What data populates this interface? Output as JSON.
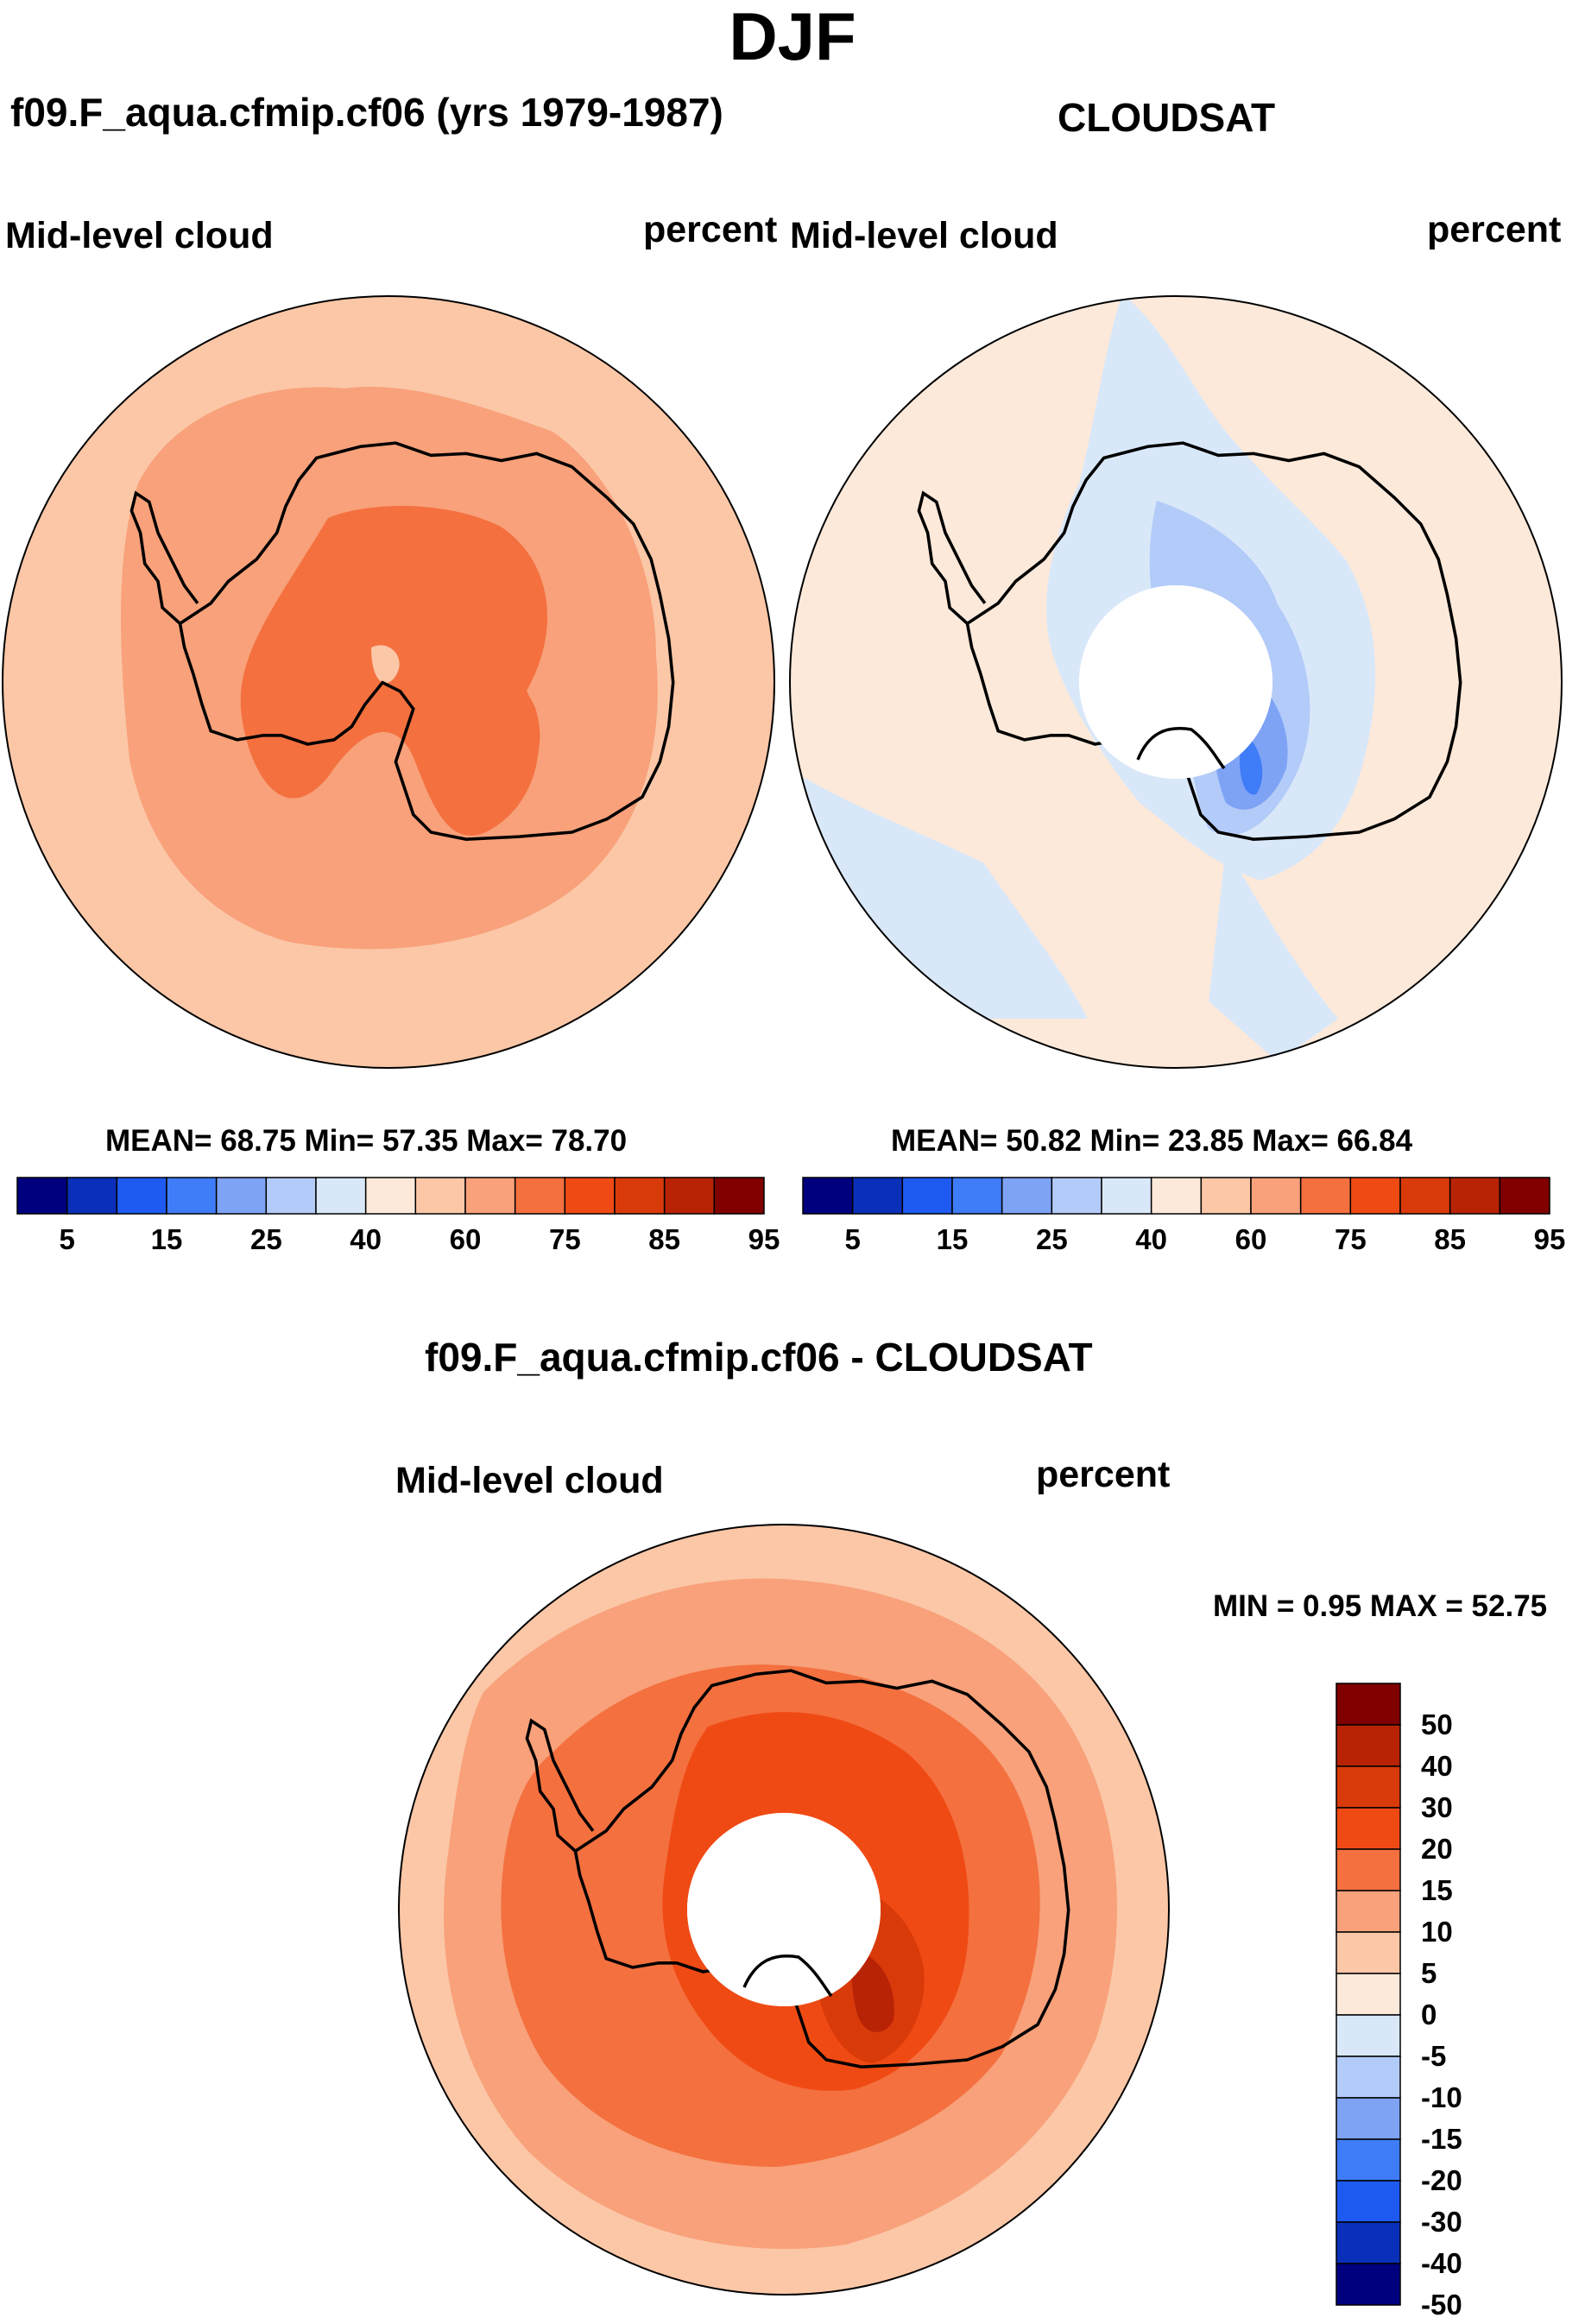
{
  "title": "DJF",
  "panels": {
    "model": {
      "title": "f09.F_aqua.cfmip.cf06 (yrs 1979-1987)",
      "left_label": "Mid-level cloud",
      "right_label": "percent",
      "stats_text": "MEAN=  68.75  Min=  57.35  Max=  78.70"
    },
    "obs": {
      "title": "CLOUDSAT",
      "left_label": "Mid-level cloud",
      "right_label": "percent",
      "stats_text": "MEAN=  50.82  Min=  23.85  Max=  66.84"
    },
    "diff": {
      "title": "f09.F_aqua.cfmip.cf06 - CLOUDSAT",
      "left_label": "Mid-level cloud",
      "right_label": "percent",
      "minmax_text": "MIN =   0.95 MAX =  52.75"
    }
  },
  "colorbar_abs": {
    "colors": [
      "#00007f",
      "#0a2fb8",
      "#1f5af0",
      "#3f7cf7",
      "#7ea3f5",
      "#b3cbf8",
      "#d9e8f9",
      "#fde9da",
      "#fbc7a7",
      "#f8a17a",
      "#f4703f",
      "#f04a14",
      "#d93a0a",
      "#b82306",
      "#800000"
    ],
    "ticks": [
      "5",
      "15",
      "25",
      "40",
      "60",
      "75",
      "85",
      "95"
    ]
  },
  "colorbar_diff": {
    "colors": [
      "#00007f",
      "#0a2fb8",
      "#1f5af0",
      "#3f7cf7",
      "#7ea3f5",
      "#b3cbf8",
      "#d9e8f9",
      "#fde9da",
      "#fbc7a7",
      "#f8a17a",
      "#f4703f",
      "#f04a14",
      "#d93a0a",
      "#b82306",
      "#800000"
    ],
    "ticks": [
      "50",
      "40",
      "30",
      "20",
      "15",
      "10",
      "5",
      "0",
      "-5",
      "-10",
      "-15",
      "-20",
      "-30",
      "-40",
      "-50"
    ]
  },
  "chart_data": [
    {
      "type": "heatmap",
      "title": "f09.F_aqua.cfmip.cf06 (yrs 1979-1987)",
      "variable": "Mid-level cloud",
      "units": "percent",
      "season": "DJF",
      "projection": "south polar stereographic",
      "mean": 68.75,
      "min": 57.35,
      "max": 78.7,
      "contour_levels": [
        5,
        10,
        15,
        20,
        25,
        30,
        40,
        50,
        60,
        70,
        75,
        80,
        85,
        90,
        95
      ]
    },
    {
      "type": "heatmap",
      "title": "CLOUDSAT",
      "variable": "Mid-level cloud",
      "units": "percent",
      "season": "DJF",
      "projection": "south polar stereographic",
      "mean": 50.82,
      "min": 23.85,
      "max": 66.84,
      "contour_levels": [
        5,
        10,
        15,
        20,
        25,
        30,
        40,
        50,
        60,
        70,
        75,
        80,
        85,
        90,
        95
      ]
    },
    {
      "type": "heatmap",
      "title": "f09.F_aqua.cfmip.cf06 - CLOUDSAT",
      "variable": "Mid-level cloud",
      "units": "percent",
      "season": "DJF",
      "projection": "south polar stereographic",
      "min": 0.95,
      "max": 52.75,
      "contour_levels": [
        -50,
        -40,
        -30,
        -20,
        -15,
        -10,
        -5,
        0,
        5,
        10,
        15,
        20,
        30,
        40,
        50
      ]
    }
  ]
}
